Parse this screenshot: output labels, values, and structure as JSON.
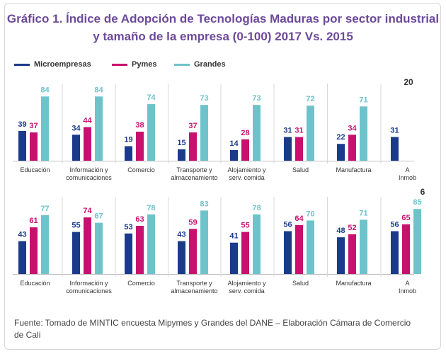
{
  "title_line1": "Gráfico 1. Índice de Adopción de Tecnologías Maduras por sector industrial",
  "title_line2": "y tamaño de la empresa (0-100) 2017 Vs. 2015",
  "legend": [
    {
      "label": "Microempresas",
      "color": "#1a3a8a"
    },
    {
      "label": "Pymes",
      "color": "#c8106e"
    },
    {
      "label": "Grandes",
      "color": "#6ec3cb"
    }
  ],
  "source": "Fuente: Tomado de MINTIC encuesta Mipymes y Grandes del DANE – Elaboración Cámara de Comercio de Cali",
  "chart_data": [
    {
      "type": "bar",
      "categories": [
        "Educación",
        "Información y\ncomunicaciones",
        "Comercio",
        "Transporte y\nalmacenamiento",
        "Alojamiento y\nserv. comida",
        "Salud",
        "Manufactura",
        "A\nInmob"
      ],
      "series": [
        {
          "name": "Microempresas",
          "values": [
            39,
            34,
            19,
            15,
            14,
            31,
            22,
            31
          ]
        },
        {
          "name": "Pymes",
          "values": [
            37,
            44,
            38,
            37,
            28,
            31,
            34,
            null
          ]
        },
        {
          "name": "Grandes",
          "values": [
            84,
            84,
            74,
            73,
            73,
            72,
            71,
            null
          ]
        }
      ],
      "corner_label": "20",
      "ylim": [
        0,
        100
      ]
    },
    {
      "type": "bar",
      "categories": [
        "Educación",
        "Información y\ncomunicaciones",
        "Comercio",
        "Transporte y\nalmacenamiento",
        "Alojamiento y\nserv. comida",
        "Salud",
        "Manufactura",
        "A\nInmob"
      ],
      "series": [
        {
          "name": "Microempresas",
          "values": [
            43,
            55,
            53,
            43,
            41,
            56,
            48,
            56
          ]
        },
        {
          "name": "Pymes",
          "values": [
            61,
            74,
            63,
            59,
            55,
            64,
            52,
            65
          ]
        },
        {
          "name": "Grandes",
          "values": [
            77,
            67,
            78,
            83,
            78,
            70,
            71,
            85
          ]
        }
      ],
      "corner_label": "6",
      "ylim": [
        0,
        100
      ]
    }
  ]
}
